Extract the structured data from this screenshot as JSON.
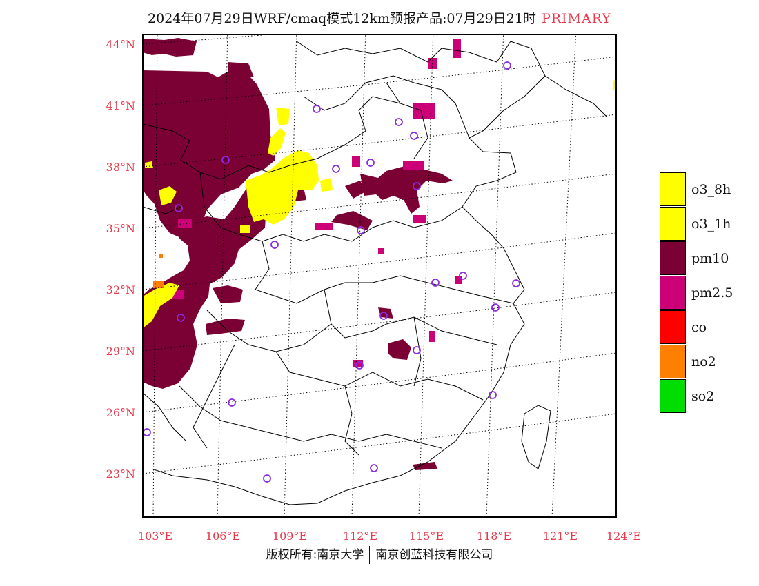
{
  "header": {
    "title": "2024年07月29日WRF/cmaq模式12km预报产品:07月29日21时",
    "tag": "PRIMARY"
  },
  "map": {
    "lat_labels": [
      "44°N",
      "41°N",
      "38°N",
      "35°N",
      "32°N",
      "29°N",
      "26°N",
      "23°N"
    ],
    "lon_labels": [
      "103°E",
      "106°E",
      "109°E",
      "112°E",
      "115°E",
      "118°E",
      "121°E",
      "124°E"
    ],
    "colors": {
      "o3_8h": "#ffff00",
      "o3_1h": "#ffff00",
      "pm10": "#7b0033",
      "pm2_5": "#cc0077",
      "co": "#ff0000",
      "no2": "#ff8000",
      "so2": "#00dd00",
      "station": "#8a2be2",
      "label": "#e8394a"
    }
  },
  "legend": {
    "items": [
      {
        "label": "o3_8h",
        "color": "#ffff00"
      },
      {
        "label": "o3_1h",
        "color": "#ffff00"
      },
      {
        "label": "pm10",
        "color": "#7b0033"
      },
      {
        "label": "pm2.5",
        "color": "#cc0077"
      },
      {
        "label": "co",
        "color": "#ff0000"
      },
      {
        "label": "no2",
        "color": "#ff8000"
      },
      {
        "label": "so2",
        "color": "#00dd00"
      }
    ]
  },
  "footer": {
    "left": "版权所有:南京大学",
    "right": "南京创蓝科技有限公司"
  }
}
